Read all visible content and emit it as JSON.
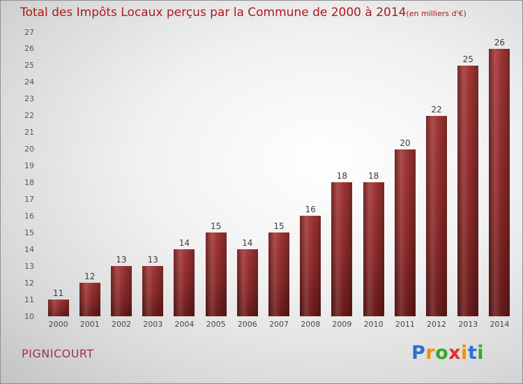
{
  "title": {
    "main": "Total des Impôts Locaux perçus par la Commune de 2000 à 2014",
    "unit": "(en milliers d'€)",
    "color": "#a81a1a"
  },
  "chart_data": {
    "type": "bar",
    "title": "Total des Impôts Locaux perçus par la Commune de 2000 à 2014 (en milliers d'€)",
    "categories": [
      "2000",
      "2001",
      "2002",
      "2003",
      "2004",
      "2005",
      "2006",
      "2007",
      "2008",
      "2009",
      "2010",
      "2011",
      "2012",
      "2013",
      "2014"
    ],
    "values": [
      11,
      12,
      13,
      13,
      14,
      15,
      14,
      15,
      16,
      18,
      18,
      20,
      22,
      25,
      26
    ],
    "xlabel": "",
    "ylabel": "",
    "ylim": [
      10,
      27
    ],
    "ytick_step": 1,
    "grid": false,
    "legend": false,
    "bar_color_top": "#a33737",
    "bar_color_bottom": "#6b1c1c"
  },
  "footer": {
    "commune": "PIGNICOURT",
    "commune_color": "#a32c55",
    "logo_letters": [
      {
        "ch": "P",
        "color": "#2f6fd0"
      },
      {
        "ch": "r",
        "color": "#f29000"
      },
      {
        "ch": "o",
        "color": "#3aa62f"
      },
      {
        "ch": "x",
        "color": "#e03030"
      },
      {
        "ch": "i",
        "color": "#f29000"
      },
      {
        "ch": "t",
        "color": "#2f6fd0"
      },
      {
        "ch": "i",
        "color": "#3aa62f"
      }
    ]
  }
}
